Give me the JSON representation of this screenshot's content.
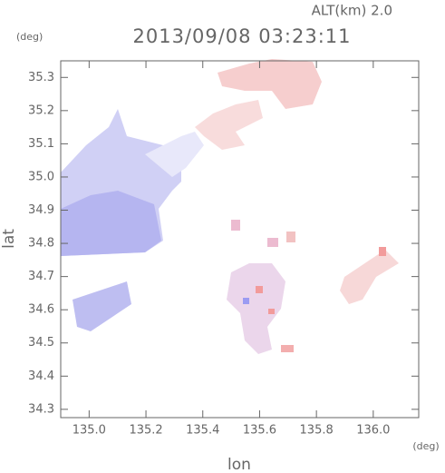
{
  "chart_data": {
    "type": "map",
    "title": "2013/09/08 03:23:11",
    "subtitle": "ALT(km) 2.0",
    "x_label": "lon",
    "y_label": "lat",
    "x_unit": "(deg)",
    "y_unit": "(deg)",
    "xlim": [
      134.9,
      136.16
    ],
    "ylim": [
      34.275,
      35.35
    ],
    "xticks": [
      {
        "value": 135,
        "label": "135.0"
      },
      135.2,
      135.4,
      135.6,
      135.8,
      {
        "value": 136,
        "label": "136.0"
      }
    ],
    "yticks": [
      34.3,
      34.4,
      34.5,
      34.6,
      34.7,
      34.8,
      34.9,
      {
        "value": 35,
        "label": "35.0"
      },
      35.1,
      35.2,
      35.3
    ]
  }
}
